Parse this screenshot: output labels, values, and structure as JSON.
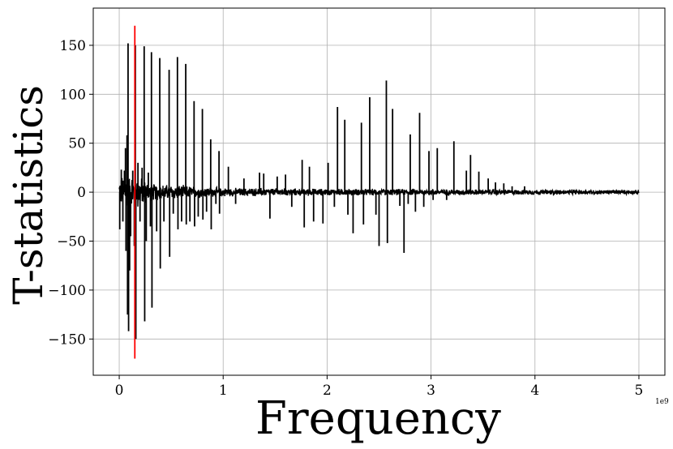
{
  "chart_data": {
    "type": "line",
    "title": "",
    "xlabel": "Frequency",
    "ylabel": "T-statistics",
    "x_offset_label": "1e9",
    "xlim": [
      -0.25,
      5.25
    ],
    "ylim": [
      -187,
      188
    ],
    "xticks": [
      0,
      1,
      2,
      3,
      4,
      5
    ],
    "xtick_labels": [
      "0",
      "1",
      "2",
      "3",
      "4",
      "5"
    ],
    "yticks": [
      -150,
      -100,
      -50,
      0,
      50,
      100,
      150
    ],
    "ytick_labels": [
      "−150",
      "−100",
      "−50",
      "0",
      "50",
      "100",
      "150"
    ],
    "grid": true,
    "series": [
      {
        "color": "#000000",
        "noise_x_range": [
          0,
          5
        ],
        "noise_envelope": [
          {
            "x": 0.0,
            "amp": 18
          },
          {
            "x": 0.15,
            "amp": 22
          },
          {
            "x": 0.3,
            "amp": 10
          },
          {
            "x": 1.0,
            "amp": 5
          },
          {
            "x": 2.0,
            "amp": 4
          },
          {
            "x": 3.0,
            "amp": 3.5
          },
          {
            "x": 4.0,
            "amp": 3
          },
          {
            "x": 5.0,
            "amp": 2.5
          }
        ],
        "spikes": [
          {
            "x": 0.005,
            "y": -38
          },
          {
            "x": 0.02,
            "y": 23
          },
          {
            "x": 0.035,
            "y": -30
          },
          {
            "x": 0.05,
            "y": 22
          },
          {
            "x": 0.06,
            "y": 45
          },
          {
            "x": 0.065,
            "y": -60
          },
          {
            "x": 0.075,
            "y": 58
          },
          {
            "x": 0.08,
            "y": -125
          },
          {
            "x": 0.085,
            "y": 152
          },
          {
            "x": 0.09,
            "y": -142
          },
          {
            "x": 0.1,
            "y": -80
          },
          {
            "x": 0.11,
            "y": -45
          },
          {
            "x": 0.13,
            "y": 22
          },
          {
            "x": 0.145,
            "y": -55
          },
          {
            "x": 0.155,
            "y": 150
          },
          {
            "x": 0.16,
            "y": -150
          },
          {
            "x": 0.18,
            "y": 30
          },
          {
            "x": 0.2,
            "y": -30
          },
          {
            "x": 0.22,
            "y": 25
          },
          {
            "x": 0.24,
            "y": 149
          },
          {
            "x": 0.245,
            "y": -132
          },
          {
            "x": 0.26,
            "y": -50
          },
          {
            "x": 0.28,
            "y": 20
          },
          {
            "x": 0.3,
            "y": -35
          },
          {
            "x": 0.31,
            "y": 143
          },
          {
            "x": 0.315,
            "y": -118
          },
          {
            "x": 0.36,
            "y": -40
          },
          {
            "x": 0.39,
            "y": 137
          },
          {
            "x": 0.395,
            "y": -78
          },
          {
            "x": 0.43,
            "y": -30
          },
          {
            "x": 0.48,
            "y": 125
          },
          {
            "x": 0.485,
            "y": -66
          },
          {
            "x": 0.52,
            "y": -22
          },
          {
            "x": 0.56,
            "y": 138
          },
          {
            "x": 0.565,
            "y": -38
          },
          {
            "x": 0.6,
            "y": -30
          },
          {
            "x": 0.64,
            "y": 131
          },
          {
            "x": 0.645,
            "y": -33
          },
          {
            "x": 0.68,
            "y": -30
          },
          {
            "x": 0.72,
            "y": 93
          },
          {
            "x": 0.725,
            "y": -35
          },
          {
            "x": 0.76,
            "y": -25
          },
          {
            "x": 0.8,
            "y": 85
          },
          {
            "x": 0.805,
            "y": -28
          },
          {
            "x": 0.84,
            "y": -20
          },
          {
            "x": 0.88,
            "y": 54
          },
          {
            "x": 0.885,
            "y": -38
          },
          {
            "x": 0.93,
            "y": -12
          },
          {
            "x": 0.96,
            "y": 42
          },
          {
            "x": 0.965,
            "y": -22
          },
          {
            "x": 1.05,
            "y": 26
          },
          {
            "x": 1.12,
            "y": -12
          },
          {
            "x": 1.2,
            "y": 14
          },
          {
            "x": 1.35,
            "y": 20
          },
          {
            "x": 1.39,
            "y": 19
          },
          {
            "x": 1.45,
            "y": -27
          },
          {
            "x": 1.52,
            "y": 16
          },
          {
            "x": 1.6,
            "y": 18
          },
          {
            "x": 1.66,
            "y": -15
          },
          {
            "x": 1.76,
            "y": 33
          },
          {
            "x": 1.78,
            "y": -36
          },
          {
            "x": 1.83,
            "y": 26
          },
          {
            "x": 1.87,
            "y": -30
          },
          {
            "x": 1.96,
            "y": -32
          },
          {
            "x": 2.01,
            "y": 30
          },
          {
            "x": 2.07,
            "y": -15
          },
          {
            "x": 2.1,
            "y": 87
          },
          {
            "x": 2.17,
            "y": 74
          },
          {
            "x": 2.2,
            "y": -23
          },
          {
            "x": 2.25,
            "y": -42
          },
          {
            "x": 2.33,
            "y": 71
          },
          {
            "x": 2.35,
            "y": -33
          },
          {
            "x": 2.41,
            "y": 97
          },
          {
            "x": 2.47,
            "y": -23
          },
          {
            "x": 2.5,
            "y": -55
          },
          {
            "x": 2.57,
            "y": 114
          },
          {
            "x": 2.58,
            "y": -52
          },
          {
            "x": 2.63,
            "y": 85
          },
          {
            "x": 2.7,
            "y": -14
          },
          {
            "x": 2.74,
            "y": -62
          },
          {
            "x": 2.78,
            "y": -12
          },
          {
            "x": 2.8,
            "y": 59
          },
          {
            "x": 2.85,
            "y": -20
          },
          {
            "x": 2.89,
            "y": 81
          },
          {
            "x": 2.93,
            "y": -15
          },
          {
            "x": 2.98,
            "y": 42
          },
          {
            "x": 3.02,
            "y": -8
          },
          {
            "x": 3.06,
            "y": 45
          },
          {
            "x": 3.15,
            "y": -8
          },
          {
            "x": 3.22,
            "y": 52
          },
          {
            "x": 3.34,
            "y": 22
          },
          {
            "x": 3.38,
            "y": 38
          },
          {
            "x": 3.46,
            "y": 21
          },
          {
            "x": 3.55,
            "y": 14
          },
          {
            "x": 3.62,
            "y": 10
          },
          {
            "x": 3.7,
            "y": 9
          },
          {
            "x": 3.78,
            "y": 6
          },
          {
            "x": 3.9,
            "y": 6
          }
        ]
      }
    ],
    "marker_line": {
      "x": 0.15,
      "y": [
        -170,
        170
      ],
      "color": "#ff0000"
    }
  }
}
